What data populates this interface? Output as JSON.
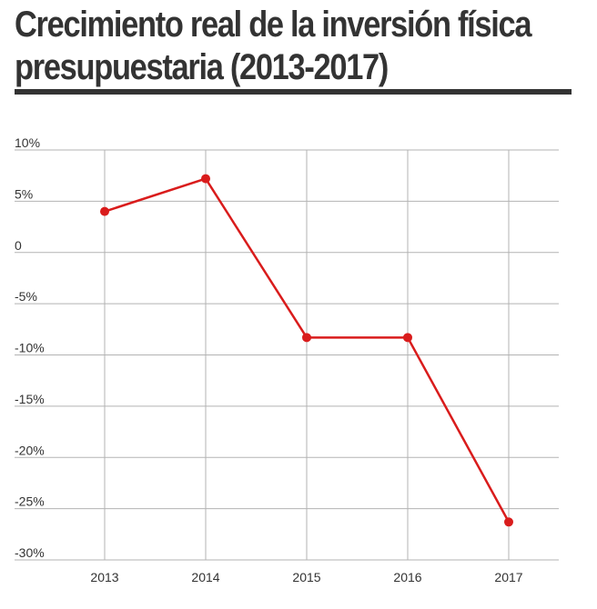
{
  "title": {
    "line1": "Crecimiento real de la inversión física",
    "line2": "presupuestaria (2013-2017)"
  },
  "colors": {
    "series": "#d91c1c",
    "grid": "#b3b3b3",
    "text": "#333333"
  },
  "chart_data": {
    "type": "line",
    "title": "Crecimiento real de la inversión física presupuestaria (2013-2017)",
    "xlabel": "",
    "ylabel": "",
    "categories": [
      "2013",
      "2014",
      "2015",
      "2016",
      "2017"
    ],
    "series": [
      {
        "values": [
          4.0,
          7.2,
          -8.3,
          -8.3,
          -26.3
        ]
      }
    ],
    "ylim": [
      -30,
      10
    ],
    "y_ticks": [
      10,
      5,
      0,
      -5,
      -10,
      -15,
      -20,
      -25,
      -30
    ],
    "y_tick_labels": [
      "10%",
      "5%",
      "0",
      "-5%",
      "-10%",
      "-15%",
      "-20%",
      "-25%",
      "-30%"
    ],
    "grid": true,
    "legend": "none"
  }
}
